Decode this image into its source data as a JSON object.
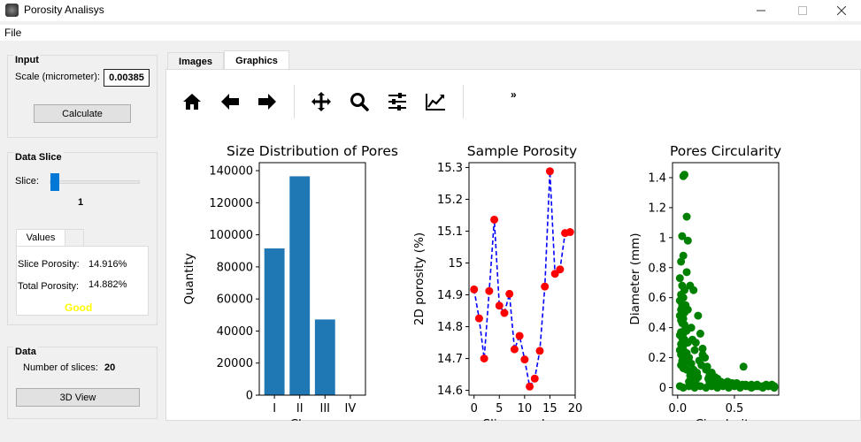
{
  "window": {
    "title": "Porosity Analisys"
  },
  "menu": {
    "file": "File"
  },
  "input_group": {
    "title": "Input",
    "scale_label": "Scale (micrometer):",
    "scale_value": "0.00385",
    "calculate_label": "Calculate"
  },
  "slice_group": {
    "title": "Data Slice",
    "slice_label": "Slice:",
    "slice_value": "1",
    "values_tab": "Values",
    "slice_porosity_label": "Slice Porosity:",
    "slice_porosity_value": "14.916%",
    "total_porosity_label": "Total Porosity:",
    "total_porosity_value": "14.882%",
    "quality": "Good",
    "quality_color": "#ffff00"
  },
  "data_group": {
    "title": "Data",
    "num_slices_label": "Number of slices:",
    "num_slices_value": "20",
    "view3d_label": "3D View"
  },
  "tabs": [
    {
      "label": "Images"
    },
    {
      "label": "Graphics"
    }
  ],
  "toolbar": {
    "icons": [
      "home-icon",
      "back-arrow-icon",
      "forward-arrow-icon",
      "pan-icon",
      "zoom-icon",
      "configure-subplots-icon",
      "edit-axis-icon"
    ],
    "more": "»"
  },
  "chart_data": [
    {
      "type": "bar",
      "title": "Size Distribution of Pores",
      "xlabel": "Classes",
      "ylabel": "Quantity",
      "categories": [
        "I",
        "II",
        "III",
        "IV"
      ],
      "values": [
        91500,
        136500,
        47200,
        0
      ],
      "ylim": [
        0,
        145000
      ],
      "yticks": [
        0,
        20000,
        40000,
        60000,
        80000,
        100000,
        120000,
        140000
      ],
      "color": "#1f77b4"
    },
    {
      "type": "line",
      "title": "Sample Porosity",
      "xlabel": "Slice number",
      "ylabel": "2D porosity (%)",
      "x": [
        0,
        1,
        2,
        3,
        4,
        5,
        6,
        7,
        8,
        9,
        10,
        11,
        12,
        13,
        14,
        15,
        16,
        17,
        18,
        19
      ],
      "y": [
        14.917,
        14.826,
        14.7,
        14.912,
        15.136,
        14.866,
        14.843,
        14.903,
        14.729,
        14.771,
        14.697,
        14.612,
        14.637,
        14.724,
        14.926,
        15.288,
        14.966,
        14.98,
        15.094,
        15.097
      ],
      "xlim": [
        -1,
        20
      ],
      "ylim": [
        14.585,
        15.315
      ],
      "xticks": [
        0,
        5,
        10,
        15,
        20
      ],
      "yticks": [
        14.6,
        14.7,
        14.8,
        14.9,
        15.0,
        15.1,
        15.2,
        15.3
      ],
      "line_color": "#0000ff",
      "marker_color": "#ff0000"
    },
    {
      "type": "scatter",
      "title": "Pores Circularity",
      "xlabel": "Circularity",
      "ylabel": "Diameter (mm)",
      "x": [
        0.05,
        0.06,
        0.08,
        0.04,
        0.09,
        0.03,
        0.05,
        0.08,
        0.02,
        0.04,
        0.06,
        0.03,
        0.05,
        0.02,
        0.04,
        0.07,
        0.03,
        0.06,
        0.02,
        0.05,
        0.03,
        0.04,
        0.06,
        0.07,
        0.08,
        0.03,
        0.05,
        0.02,
        0.04,
        0.06,
        0.09,
        0.03,
        0.05,
        0.04,
        0.02,
        0.06,
        0.08,
        0.03,
        0.05,
        0.07,
        0.04,
        0.06,
        0.03,
        0.05,
        0.08,
        0.11,
        0.09,
        0.14,
        0.18,
        0.2,
        0.22,
        0.16,
        0.25,
        0.12,
        0.15,
        0.13,
        0.19,
        0.21,
        0.24,
        0.26,
        0.1,
        0.12,
        0.14,
        0.17,
        0.11,
        0.13,
        0.16,
        0.1,
        0.12,
        0.15,
        0.3,
        0.28,
        0.33,
        0.27,
        0.35,
        0.31,
        0.29,
        0.38,
        0.34,
        0.4,
        0.36,
        0.42,
        0.45,
        0.48,
        0.5,
        0.53,
        0.57,
        0.6,
        0.62,
        0.65,
        0.68,
        0.7,
        0.72,
        0.75,
        0.78,
        0.8,
        0.83,
        0.85,
        0.58,
        0.22,
        0.02,
        0.1,
        0.2,
        0.3,
        0.4,
        0.5,
        0.6,
        0.7,
        0.8,
        0.05,
        0.15,
        0.25,
        0.35,
        0.45,
        0.55,
        0.65,
        0.75,
        0.85,
        0.12,
        0.18,
        0.28,
        0.38,
        0.48,
        0.52,
        0.44
      ],
      "y": [
        1.41,
        1.42,
        1.14,
        1.01,
        0.98,
        0.84,
        0.88,
        0.77,
        0.73,
        0.68,
        0.65,
        0.62,
        0.6,
        0.58,
        0.55,
        0.55,
        0.52,
        0.5,
        0.48,
        0.46,
        0.45,
        0.43,
        0.42,
        0.4,
        0.38,
        0.37,
        0.36,
        0.35,
        0.33,
        0.32,
        0.3,
        0.29,
        0.28,
        0.26,
        0.25,
        0.24,
        0.23,
        0.22,
        0.2,
        0.19,
        0.18,
        0.16,
        0.15,
        0.13,
        0.12,
        0.68,
        0.52,
        0.65,
        0.48,
        0.36,
        0.22,
        0.3,
        0.12,
        0.4,
        0.25,
        0.32,
        0.18,
        0.15,
        0.2,
        0.14,
        0.2,
        0.16,
        0.12,
        0.1,
        0.08,
        0.06,
        0.05,
        0.04,
        0.03,
        0.02,
        0.1,
        0.08,
        0.07,
        0.06,
        0.06,
        0.05,
        0.05,
        0.04,
        0.04,
        0.03,
        0.03,
        0.03,
        0.02,
        0.03,
        0.02,
        0.02,
        0.02,
        0.02,
        0.01,
        0.02,
        0.01,
        0.02,
        0.01,
        0.01,
        0.02,
        0.01,
        0.02,
        0.01,
        0.14,
        0.26,
        0.01,
        0.01,
        0.01,
        0.01,
        0.01,
        0.01,
        0.01,
        0.01,
        0.01,
        0.0,
        0.0,
        0.0,
        0.0,
        0.0,
        0.0,
        0.0,
        0.0,
        0.0,
        0.05,
        0.07,
        0.04,
        0.03,
        0.02,
        0.03,
        0.04
      ],
      "xlim": [
        -0.045,
        0.89
      ],
      "ylim": [
        -0.05,
        1.5
      ],
      "xticks": [
        0.0,
        0.5
      ],
      "xtick_labels": [
        "0.0",
        "0.5"
      ],
      "yticks": [
        0.0,
        0.2,
        0.4,
        0.6,
        0.8,
        1.0,
        1.2,
        1.4
      ],
      "color": "#008000"
    }
  ]
}
